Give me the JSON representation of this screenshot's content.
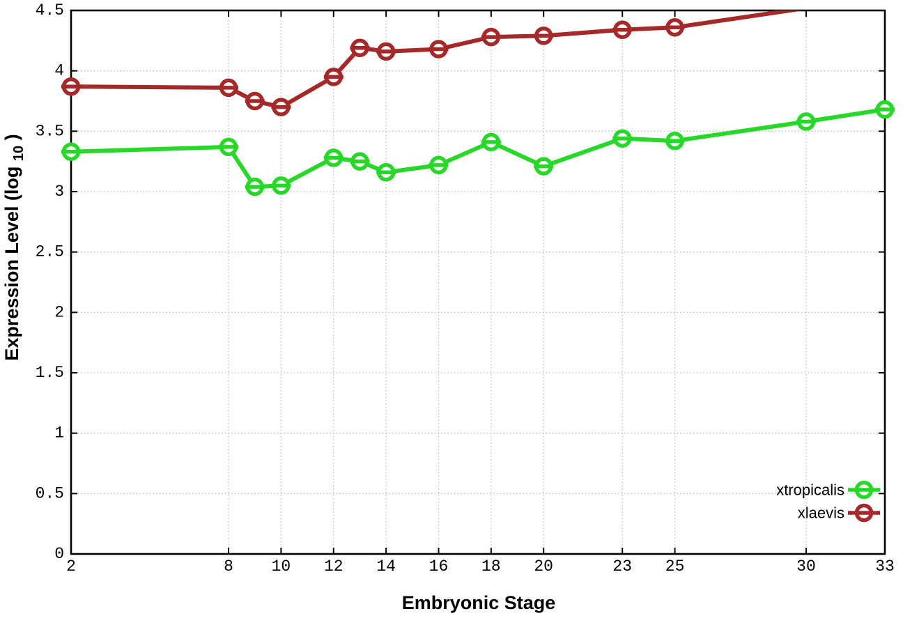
{
  "page": {
    "background": "#ffffff"
  },
  "chart_data": {
    "type": "line",
    "title": "",
    "xlabel": "Embryonic Stage",
    "ylabel": "Expression Level (log10)",
    "ylabel_parts": {
      "main": "Expression Level (log",
      "subscript": "10",
      "close": ")"
    },
    "xlim": [
      2,
      33
    ],
    "ylim": [
      0,
      4.5
    ],
    "x_ticks": [
      2,
      8,
      10,
      12,
      14,
      16,
      18,
      20,
      23,
      25,
      30,
      33
    ],
    "y_tick_labels": [
      "0",
      "0.5",
      "1",
      "1.5",
      "2",
      "2.5",
      "3",
      "3.5",
      "4",
      "4.5"
    ],
    "grid": true,
    "legend_position": "bottom-right-inside",
    "x": [
      2,
      8,
      9,
      10,
      12,
      13,
      14,
      16,
      18,
      20,
      23,
      25,
      30,
      33
    ],
    "series": [
      {
        "name": "xtropicalis",
        "color": "#28d828",
        "marker": "open-circle",
        "values": [
          3.33,
          3.37,
          3.04,
          3.05,
          3.28,
          3.25,
          3.16,
          3.22,
          3.41,
          3.21,
          3.44,
          3.42,
          3.58,
          3.68
        ]
      },
      {
        "name": "xlaevis",
        "color": "#a62929",
        "marker": "open-circle",
        "values": [
          3.87,
          3.86,
          3.75,
          3.7,
          3.95,
          4.19,
          4.16,
          4.18,
          4.28,
          4.29,
          4.34,
          4.36,
          4.52,
          4.62
        ],
        "clipped_above_ymax_at_x": [
          30,
          33
        ]
      }
    ],
    "colors": {
      "grid": "#bbbbbb",
      "axis": "#000000",
      "marker_fill": "#ffffff"
    }
  }
}
